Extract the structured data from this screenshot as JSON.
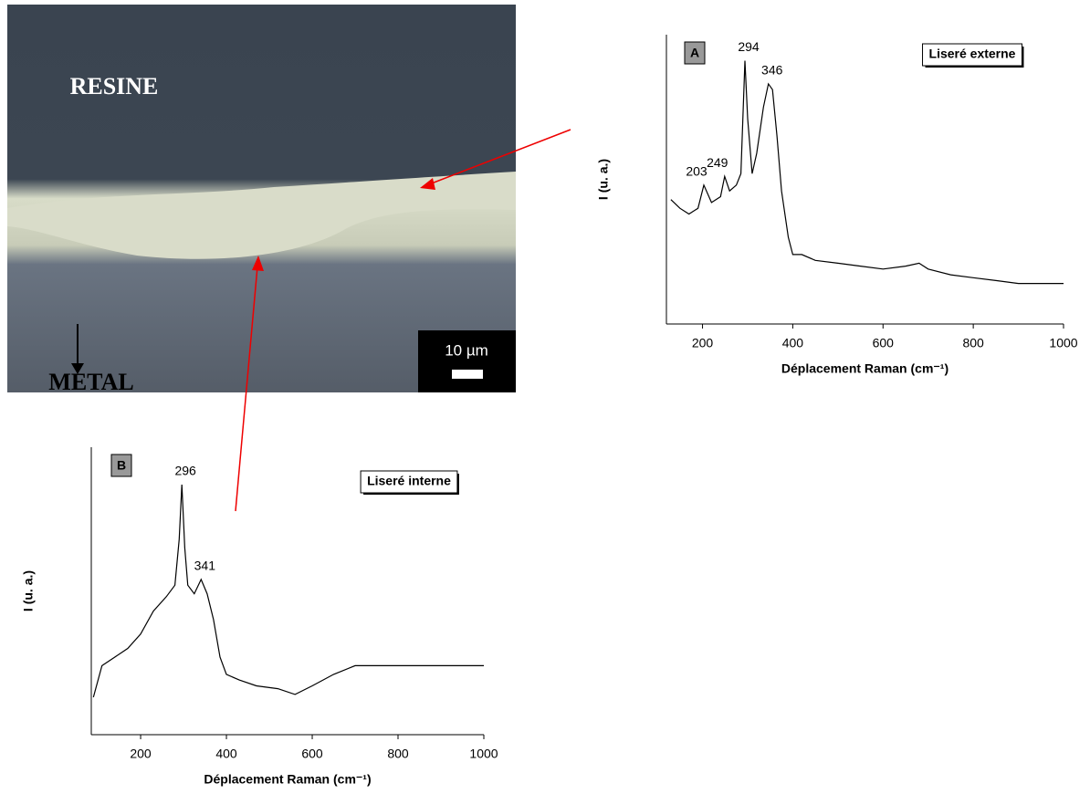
{
  "micrograph": {
    "top_label": "RESINE",
    "bottom_label": "METAL",
    "scale_bar": "10 µm"
  },
  "chart_data": [
    {
      "type": "line",
      "panel": "A",
      "box_label": "Liseré externe",
      "x_label": "Déplacement Raman (cm⁻¹)",
      "y_label": "I (u. a.)",
      "xlim": [
        120,
        1000
      ],
      "xticks": [
        200,
        400,
        600,
        800,
        1000
      ],
      "ylim": [
        0,
        100
      ],
      "color": "#000000",
      "x": [
        130,
        150,
        170,
        190,
        203,
        220,
        240,
        249,
        260,
        275,
        285,
        294,
        300,
        310,
        320,
        335,
        346,
        355,
        365,
        375,
        390,
        400,
        420,
        450,
        500,
        550,
        600,
        650,
        680,
        700,
        750,
        800,
        850,
        900,
        950,
        1000
      ],
      "series": [
        {
          "values": [
            43,
            40,
            38,
            40,
            48,
            42,
            44,
            51,
            46,
            48,
            52,
            91,
            71,
            52,
            59,
            75,
            83,
            81,
            65,
            46,
            30,
            24,
            24,
            22,
            21,
            20,
            19,
            20,
            21,
            19,
            17,
            16,
            15,
            14,
            14,
            14
          ]
        }
      ],
      "annotations": [
        {
          "label": "294",
          "x": 294
        },
        {
          "label": "346",
          "x": 346
        },
        {
          "label": "203",
          "x": 203
        },
        {
          "label": "249",
          "x": 249
        }
      ]
    },
    {
      "type": "line",
      "panel": "B",
      "box_label": "Liseré interne",
      "x_label": "Déplacement Raman (cm⁻¹)",
      "y_label": "I (u. a.)",
      "xlim": [
        85,
        1000
      ],
      "xticks": [
        200,
        400,
        600,
        800,
        1000
      ],
      "ylim": [
        0,
        100
      ],
      "color": "#000000",
      "x": [
        90,
        110,
        140,
        170,
        200,
        230,
        260,
        280,
        290,
        296,
        303,
        310,
        325,
        341,
        355,
        370,
        385,
        400,
        430,
        470,
        520,
        560,
        600,
        650,
        700,
        750,
        800,
        850,
        900,
        950,
        1000
      ],
      "series": [
        {
          "values": [
            13,
            24,
            27,
            30,
            35,
            43,
            48,
            52,
            68,
            87,
            65,
            52,
            49,
            54,
            49,
            40,
            27,
            21,
            19,
            17,
            16,
            14,
            17,
            21,
            24,
            24,
            24,
            24,
            24,
            24,
            24
          ]
        }
      ],
      "annotations": [
        {
          "label": "296",
          "x": 296
        },
        {
          "label": "341",
          "x": 341
        }
      ]
    }
  ]
}
